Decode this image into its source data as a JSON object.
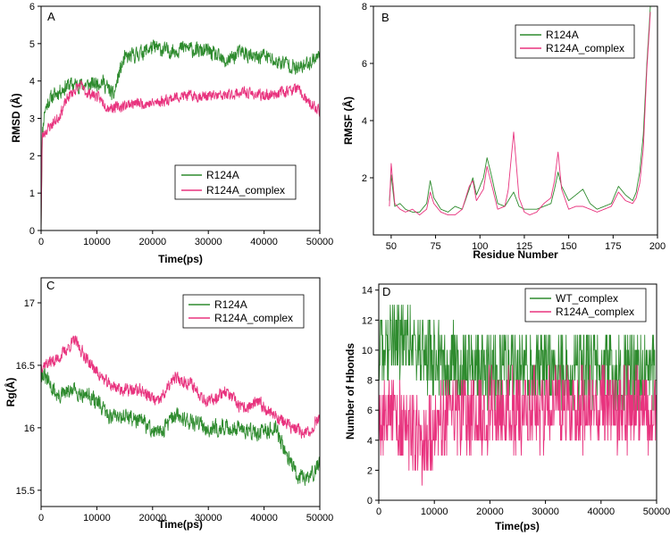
{
  "colors": {
    "green": "#2e8b2e",
    "pink": "#e8337e"
  },
  "chart_data": [
    {
      "id": "A",
      "type": "line",
      "letter": "A",
      "xlabel": "Time(ps)",
      "ylabel": "RMSD (Å)",
      "xlim": [
        0,
        50000
      ],
      "ylim": [
        0,
        6
      ],
      "xticks": [
        0,
        10000,
        20000,
        30000,
        40000,
        50000
      ],
      "yticks": [
        0,
        1,
        2,
        3,
        4,
        5,
        6
      ],
      "legend_position": "lower-right",
      "series": [
        {
          "name": "R124A",
          "color": "green",
          "noise": 0.28,
          "seed": 11,
          "x": [
            0,
            200,
            600,
            1500,
            3000,
            5000,
            7000,
            9000,
            11000,
            13000,
            14000,
            15000,
            17000,
            20000,
            23000,
            26000,
            28000,
            30000,
            33000,
            36000,
            38000,
            40000,
            42000,
            44000,
            46000,
            48000,
            50000
          ],
          "y": [
            0,
            2.5,
            3.2,
            3.5,
            3.7,
            3.9,
            3.9,
            3.9,
            4.0,
            3.6,
            4.2,
            4.6,
            4.7,
            4.9,
            4.8,
            4.9,
            4.8,
            4.8,
            4.5,
            4.8,
            4.6,
            4.7,
            4.5,
            4.5,
            4.3,
            4.5,
            4.7
          ]
        },
        {
          "name": "R124A_complex",
          "color": "pink",
          "noise": 0.2,
          "seed": 23,
          "x": [
            0,
            200,
            1000,
            3000,
            5000,
            7000,
            8000,
            10000,
            12000,
            14000,
            16000,
            20000,
            25000,
            30000,
            33000,
            36000,
            40000,
            43000,
            46000,
            48000,
            50000
          ],
          "y": [
            0,
            2.5,
            2.7,
            3.0,
            3.6,
            3.9,
            3.7,
            3.6,
            3.3,
            3.3,
            3.4,
            3.4,
            3.6,
            3.6,
            3.6,
            3.7,
            3.6,
            3.7,
            3.8,
            3.4,
            3.2
          ]
        }
      ]
    },
    {
      "id": "B",
      "type": "line",
      "letter": "B",
      "xlabel": "Residue Number",
      "ylabel": "RMSF (Å)",
      "xlim": [
        40,
        200
      ],
      "ylim": [
        0,
        8
      ],
      "xticks": [
        50,
        75,
        100,
        125,
        150,
        175,
        200
      ],
      "yticks": [
        2,
        4,
        6,
        8
      ],
      "legend_position": "top-right",
      "series": [
        {
          "name": "R124A",
          "color": "green",
          "noise": 0,
          "seed": 5,
          "x": [
            49,
            50,
            52,
            55,
            58,
            62,
            66,
            70,
            72,
            74,
            78,
            82,
            86,
            90,
            94,
            96,
            98,
            102,
            104,
            106,
            110,
            114,
            116,
            119,
            122,
            125,
            128,
            132,
            136,
            140,
            142,
            144,
            146,
            150,
            154,
            158,
            162,
            166,
            170,
            174,
            178,
            182,
            186,
            188,
            190,
            192,
            194,
            196
          ],
          "y": [
            1.2,
            2.1,
            1.0,
            1.1,
            0.9,
            0.8,
            0.8,
            1.1,
            1.9,
            1.3,
            0.9,
            0.8,
            1.0,
            0.9,
            1.6,
            2.0,
            1.4,
            2.0,
            2.7,
            2.2,
            1.1,
            1.0,
            1.2,
            1.5,
            1.0,
            0.9,
            0.9,
            0.9,
            1.0,
            1.1,
            1.6,
            2.2,
            1.7,
            1.2,
            1.4,
            1.6,
            1.1,
            0.9,
            1.0,
            1.1,
            1.7,
            1.4,
            1.2,
            1.5,
            2.2,
            3.5,
            6.0,
            8.0
          ]
        },
        {
          "name": "R124A_complex",
          "color": "pink",
          "noise": 0,
          "seed": 7,
          "x": [
            49,
            50,
            52,
            55,
            58,
            62,
            66,
            70,
            72,
            74,
            78,
            82,
            86,
            90,
            94,
            96,
            98,
            102,
            104,
            106,
            110,
            114,
            116,
            119,
            122,
            125,
            128,
            132,
            136,
            140,
            142,
            144,
            146,
            150,
            154,
            158,
            162,
            166,
            170,
            174,
            178,
            182,
            186,
            188,
            190,
            192,
            194,
            196
          ],
          "y": [
            1.0,
            2.5,
            1.1,
            0.9,
            0.8,
            0.9,
            0.7,
            0.9,
            1.5,
            1.1,
            0.8,
            0.7,
            0.7,
            0.9,
            1.7,
            1.9,
            1.2,
            1.6,
            2.4,
            1.9,
            0.9,
            1.0,
            1.6,
            3.6,
            1.3,
            0.8,
            0.7,
            0.8,
            1.1,
            1.3,
            1.9,
            2.9,
            1.6,
            0.9,
            1.0,
            1.0,
            0.9,
            0.8,
            0.9,
            1.0,
            1.5,
            1.2,
            1.1,
            1.3,
            1.8,
            3.0,
            5.8,
            7.8
          ]
        }
      ]
    },
    {
      "id": "C",
      "type": "line",
      "letter": "C",
      "xlabel": "Time(ps)",
      "ylabel": "Rg(Å)",
      "xlim": [
        0,
        50000
      ],
      "ylim": [
        15.37,
        17.2
      ],
      "xticks": [
        0,
        10000,
        20000,
        30000,
        40000,
        50000
      ],
      "yticks": [
        15.5,
        16.0,
        16.5,
        17.0
      ],
      "legend_position": "top-right",
      "series": [
        {
          "name": "R124A",
          "color": "green",
          "noise": 0.09,
          "seed": 31,
          "x": [
            0,
            3000,
            6000,
            9000,
            12000,
            15000,
            18000,
            21000,
            24000,
            27000,
            30000,
            33000,
            36000,
            39000,
            42000,
            44000,
            46000,
            48000,
            50000
          ],
          "y": [
            16.45,
            16.25,
            16.3,
            16.25,
            16.1,
            16.1,
            16.05,
            15.95,
            16.1,
            16.05,
            16.0,
            16.0,
            16.0,
            15.95,
            16.0,
            15.8,
            15.6,
            15.6,
            15.7
          ]
        },
        {
          "name": "R124A_complex",
          "color": "pink",
          "noise": 0.07,
          "seed": 37,
          "x": [
            0,
            3000,
            6000,
            9000,
            12000,
            15000,
            18000,
            21000,
            24000,
            27000,
            30000,
            33000,
            36000,
            39000,
            42000,
            45000,
            48000,
            50000
          ],
          "y": [
            16.5,
            16.55,
            16.7,
            16.5,
            16.35,
            16.3,
            16.3,
            16.2,
            16.4,
            16.35,
            16.2,
            16.3,
            16.15,
            16.2,
            16.1,
            16.0,
            15.95,
            16.1
          ]
        }
      ]
    },
    {
      "id": "D",
      "type": "line",
      "letter": "D",
      "xlabel": "Time(ps)",
      "ylabel": "Number of Hbonds",
      "xlim": [
        0,
        50000
      ],
      "ylim": [
        0,
        14.4
      ],
      "xticks": [
        0,
        10000,
        20000,
        30000,
        40000,
        50000
      ],
      "yticks": [
        0,
        2,
        4,
        6,
        8,
        10,
        12,
        14
      ],
      "legend_position": "top-right",
      "series": [
        {
          "name": "WT_complex",
          "color": "green",
          "noise": 1.6,
          "seed": 41,
          "integer": true,
          "x": [
            0,
            2000,
            5000,
            7000,
            9000,
            12000,
            20000,
            30000,
            40000,
            50000
          ],
          "y": [
            10,
            10.5,
            11,
            10,
            9.5,
            9,
            8.8,
            8.8,
            8.6,
            8.5
          ]
        },
        {
          "name": "R124A_complex",
          "color": "pink",
          "noise": 1.7,
          "seed": 53,
          "integer": true,
          "x": [
            0,
            3000,
            6000,
            8000,
            9000,
            12000,
            20000,
            30000,
            40000,
            50000
          ],
          "y": [
            6,
            5.5,
            4.5,
            4,
            4.5,
            5.5,
            6,
            6,
            6.2,
            6
          ]
        }
      ]
    }
  ]
}
